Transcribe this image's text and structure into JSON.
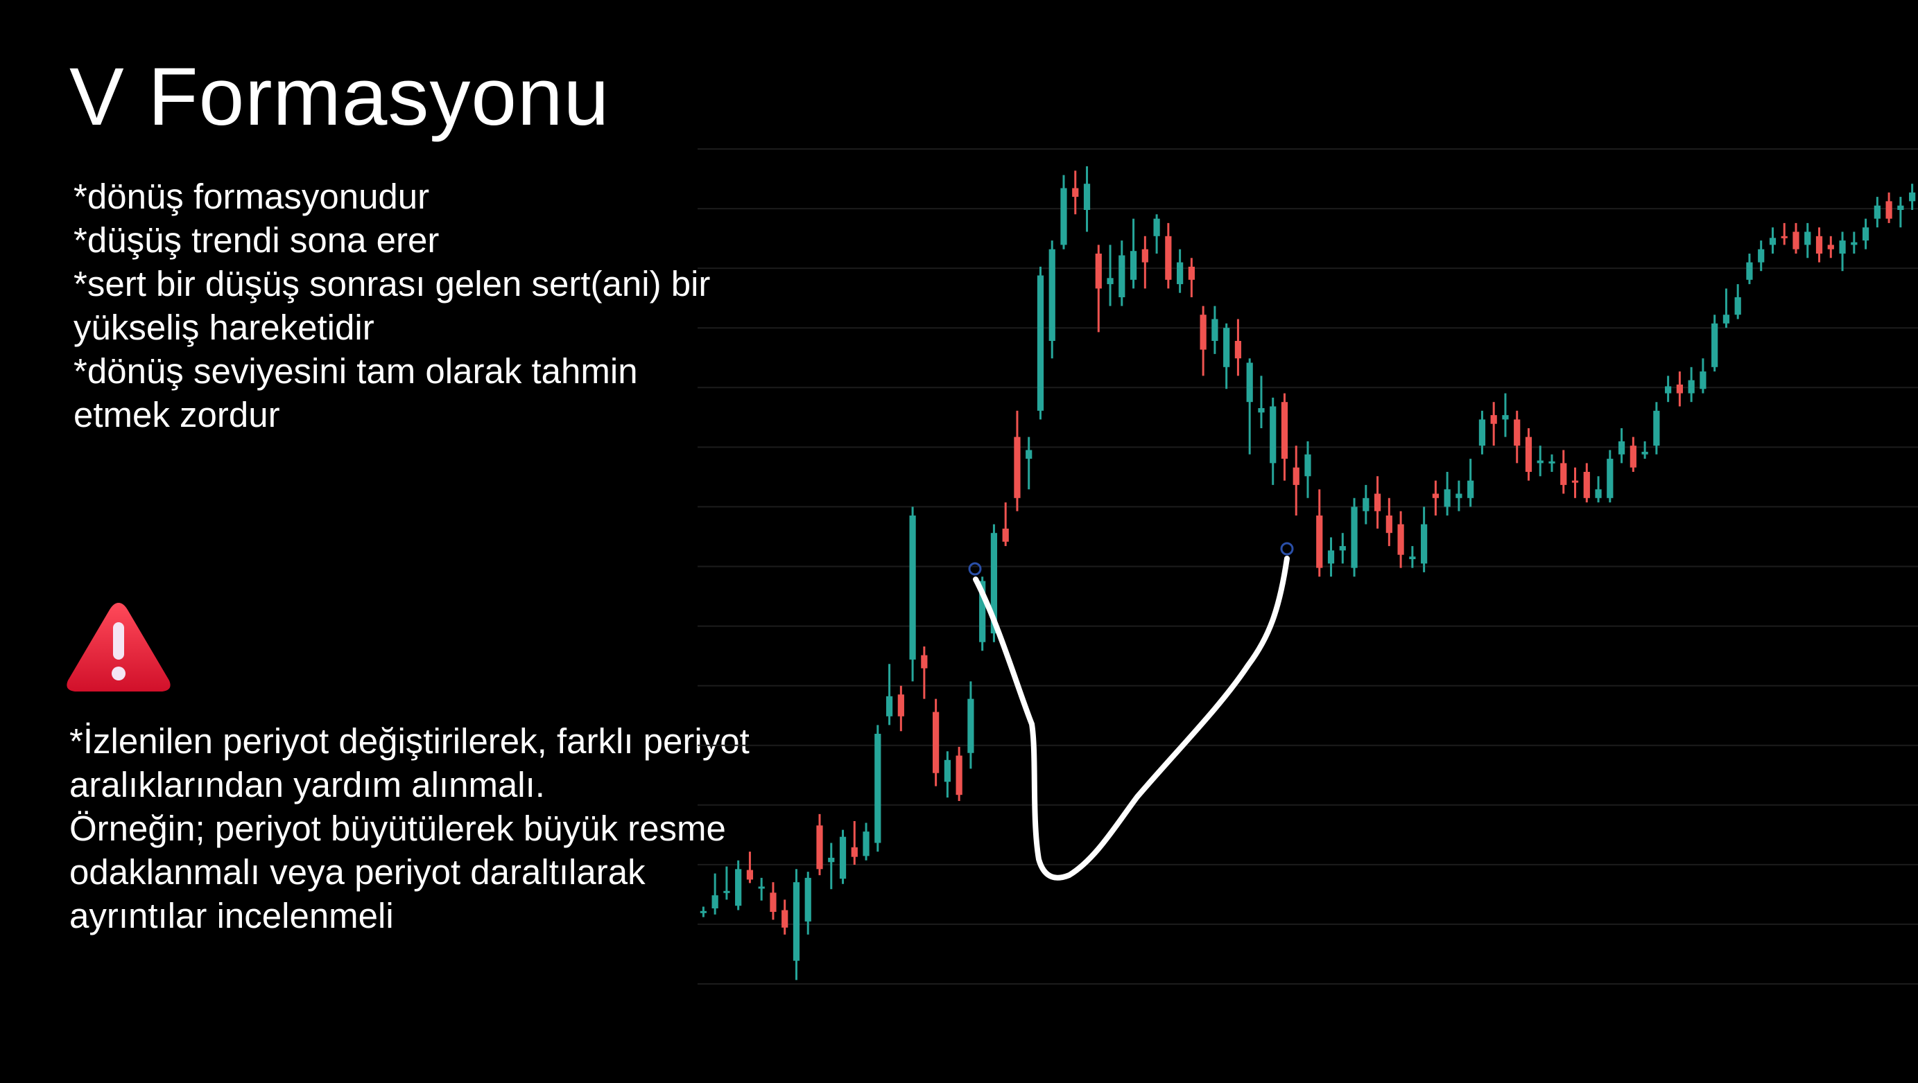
{
  "title": "V Formasyonu",
  "bullets": [
    "*dönüş formasyonudur",
    "*düşüş trendi sona erer",
    "*sert bir düşüş sonrası gelen sert(ani) bir",
    "yükseliş hareketidir",
    "*dönüş seviyesini tam olarak tahmin",
    "etmek zordur"
  ],
  "note": [
    "*İzlenilen periyot değiştirilerek, farklı periyot",
    "aralıklarından yardım alınmalı.",
    "Örneğin; periyot büyütülerek büyük resme",
    "odaklanmalı veya periyot daraltılarak",
    "ayrıntılar incelenmeli"
  ],
  "warning_icon": "warning-triangle-icon",
  "colors": {
    "up": "#26a69a",
    "down": "#ef5350",
    "background": "#000000",
    "text": "#ffffff",
    "warning": "#e8192c"
  },
  "chart_data": {
    "type": "candlestick",
    "grid": true,
    "ylim": [
      0,
      100
    ],
    "candles": [
      {
        "o": 14.5,
        "c": 14.7,
        "h": 15.2,
        "l": 14.0
      },
      {
        "o": 15.0,
        "c": 16.5,
        "h": 19.0,
        "l": 14.3
      },
      {
        "o": 16.8,
        "c": 17.0,
        "h": 19.8,
        "l": 16.0
      },
      {
        "o": 15.3,
        "c": 19.5,
        "h": 20.5,
        "l": 14.8
      },
      {
        "o": 19.4,
        "c": 18.3,
        "h": 21.5,
        "l": 17.9
      },
      {
        "o": 17.3,
        "c": 17.5,
        "h": 18.5,
        "l": 15.9
      },
      {
        "o": 16.8,
        "c": 14.6,
        "h": 18.0,
        "l": 13.7
      },
      {
        "o": 14.8,
        "c": 12.8,
        "h": 16.0,
        "l": 12.0
      },
      {
        "o": 9.0,
        "c": 18.0,
        "h": 19.5,
        "l": 6.8
      },
      {
        "o": 13.5,
        "c": 18.5,
        "h": 19.2,
        "l": 12.0
      },
      {
        "o": 24.5,
        "c": 19.5,
        "h": 25.8,
        "l": 18.8
      },
      {
        "o": 20.3,
        "c": 20.8,
        "h": 22.5,
        "l": 17.2
      },
      {
        "o": 18.4,
        "c": 23.2,
        "h": 24.0,
        "l": 17.8
      },
      {
        "o": 22.0,
        "c": 20.9,
        "h": 25.0,
        "l": 20.0
      },
      {
        "o": 21.0,
        "c": 23.8,
        "h": 24.8,
        "l": 20.5
      },
      {
        "o": 22.5,
        "c": 35.0,
        "h": 36.0,
        "l": 21.5
      },
      {
        "o": 37.0,
        "c": 39.3,
        "h": 43.0,
        "l": 36.0
      },
      {
        "o": 39.5,
        "c": 37.0,
        "h": 40.5,
        "l": 35.3
      },
      {
        "o": 43.5,
        "c": 60.0,
        "h": 61.0,
        "l": 41.0
      },
      {
        "o": 44.0,
        "c": 42.5,
        "h": 45.0,
        "l": 39.0
      },
      {
        "o": 37.5,
        "c": 30.5,
        "h": 39.0,
        "l": 29.0
      },
      {
        "o": 29.5,
        "c": 32.0,
        "h": 33.0,
        "l": 27.7
      },
      {
        "o": 32.5,
        "c": 28.0,
        "h": 33.5,
        "l": 27.3
      },
      {
        "o": 32.8,
        "c": 39.0,
        "h": 41.0,
        "l": 31.0
      },
      {
        "o": 45.5,
        "c": 52.5,
        "h": 53.0,
        "l": 44.5
      },
      {
        "o": 46.5,
        "c": 58.0,
        "h": 59.0,
        "l": 45.5
      },
      {
        "o": 58.5,
        "c": 57.0,
        "h": 61.5,
        "l": 56.5
      },
      {
        "o": 69.0,
        "c": 62.0,
        "h": 72.0,
        "l": 60.5
      },
      {
        "o": 66.5,
        "c": 67.5,
        "h": 69.0,
        "l": 63.0
      },
      {
        "o": 72.0,
        "c": 87.5,
        "h": 88.5,
        "l": 71.0
      },
      {
        "o": 80.0,
        "c": 90.5,
        "h": 91.5,
        "l": 78.0
      },
      {
        "o": 91.0,
        "c": 97.5,
        "h": 99.0,
        "l": 90.5
      },
      {
        "o": 97.5,
        "c": 96.5,
        "h": 99.5,
        "l": 94.5
      },
      {
        "o": 95.0,
        "c": 98.0,
        "h": 100,
        "l": 92.5
      },
      {
        "o": 90.0,
        "c": 86.0,
        "h": 91.0,
        "l": 81.0
      },
      {
        "o": 86.5,
        "c": 87.2,
        "h": 91.0,
        "l": 84.0
      },
      {
        "o": 85.0,
        "c": 89.8,
        "h": 91.5,
        "l": 84.0
      },
      {
        "o": 87.0,
        "c": 90.3,
        "h": 94.0,
        "l": 86.0
      },
      {
        "o": 90.5,
        "c": 89.0,
        "h": 92.0,
        "l": 86.0
      },
      {
        "o": 92.0,
        "c": 94.0,
        "h": 94.5,
        "l": 90.0
      },
      {
        "o": 92.0,
        "c": 87.0,
        "h": 93.5,
        "l": 86.0
      },
      {
        "o": 86.5,
        "c": 89.0,
        "h": 90.5,
        "l": 85.5
      },
      {
        "o": 88.5,
        "c": 87.0,
        "h": 89.5,
        "l": 85.0
      },
      {
        "o": 83.0,
        "c": 79.0,
        "h": 84.0,
        "l": 76.0
      },
      {
        "o": 80.0,
        "c": 82.5,
        "h": 84.0,
        "l": 78.5
      },
      {
        "o": 77.0,
        "c": 81.5,
        "h": 82.0,
        "l": 74.5
      },
      {
        "o": 80.0,
        "c": 78.0,
        "h": 82.5,
        "l": 76.0
      },
      {
        "o": 73.0,
        "c": 77.5,
        "h": 78.0,
        "l": 67.0
      },
      {
        "o": 71.8,
        "c": 72.3,
        "h": 76.0,
        "l": 70.0
      },
      {
        "o": 66.0,
        "c": 72.5,
        "h": 73.5,
        "l": 63.5
      },
      {
        "o": 73.0,
        "c": 66.5,
        "h": 74.0,
        "l": 64.0
      },
      {
        "o": 65.5,
        "c": 63.5,
        "h": 68.0,
        "l": 60.0
      },
      {
        "o": 64.5,
        "c": 67.0,
        "h": 68.5,
        "l": 62.0
      },
      {
        "o": 60.0,
        "c": 54.0,
        "h": 63.0,
        "l": 53.0
      },
      {
        "o": 54.5,
        "c": 56.0,
        "h": 57.5,
        "l": 53.0
      },
      {
        "o": 56.0,
        "c": 56.5,
        "h": 58.0,
        "l": 54.5
      },
      {
        "o": 54.0,
        "c": 61.0,
        "h": 62.0,
        "l": 53.0
      },
      {
        "o": 60.5,
        "c": 62.0,
        "h": 63.5,
        "l": 59.0
      },
      {
        "o": 62.5,
        "c": 60.5,
        "h": 64.5,
        "l": 58.5
      },
      {
        "o": 60.0,
        "c": 58.0,
        "h": 62.0,
        "l": 56.5
      },
      {
        "o": 59.0,
        "c": 55.5,
        "h": 60.5,
        "l": 54.0
      },
      {
        "o": 55.0,
        "c": 55.3,
        "h": 56.5,
        "l": 54.0
      },
      {
        "o": 54.5,
        "c": 59.0,
        "h": 61.0,
        "l": 53.5
      },
      {
        "o": 62.5,
        "c": 62.0,
        "h": 64.0,
        "l": 60.0
      },
      {
        "o": 61.0,
        "c": 63.0,
        "h": 65.0,
        "l": 60.0
      },
      {
        "o": 62.0,
        "c": 62.5,
        "h": 64.0,
        "l": 60.5
      },
      {
        "o": 62.0,
        "c": 64.0,
        "h": 66.5,
        "l": 61.0
      },
      {
        "o": 68.0,
        "c": 71.0,
        "h": 72.0,
        "l": 67.0
      },
      {
        "o": 71.5,
        "c": 70.5,
        "h": 73.0,
        "l": 68.0
      },
      {
        "o": 71.0,
        "c": 71.5,
        "h": 74.0,
        "l": 69.0
      },
      {
        "o": 71.0,
        "c": 68.0,
        "h": 72.0,
        "l": 66.0
      },
      {
        "o": 69.0,
        "c": 65.0,
        "h": 70.0,
        "l": 64.0
      },
      {
        "o": 66.0,
        "c": 66.3,
        "h": 68.0,
        "l": 64.5
      },
      {
        "o": 66.0,
        "c": 66.2,
        "h": 67.0,
        "l": 65.0
      },
      {
        "o": 66.0,
        "c": 63.5,
        "h": 67.5,
        "l": 62.5
      },
      {
        "o": 64.0,
        "c": 63.8,
        "h": 65.5,
        "l": 62.0
      },
      {
        "o": 65.0,
        "c": 62.0,
        "h": 66.0,
        "l": 61.5
      },
      {
        "o": 62.0,
        "c": 63.0,
        "h": 64.5,
        "l": 61.5
      },
      {
        "o": 62.0,
        "c": 66.5,
        "h": 67.5,
        "l": 61.5
      },
      {
        "o": 67.0,
        "c": 68.5,
        "h": 70.0,
        "l": 66.0
      },
      {
        "o": 68.0,
        "c": 65.5,
        "h": 69.0,
        "l": 65.0
      },
      {
        "o": 67.0,
        "c": 67.3,
        "h": 68.5,
        "l": 66.5
      },
      {
        "o": 68.0,
        "c": 72.0,
        "h": 73.0,
        "l": 67.0
      },
      {
        "o": 74.0,
        "c": 74.8,
        "h": 76.0,
        "l": 73.0
      },
      {
        "o": 75.0,
        "c": 74.0,
        "h": 76.5,
        "l": 72.5
      },
      {
        "o": 74.0,
        "c": 75.5,
        "h": 77.0,
        "l": 73.0
      },
      {
        "o": 74.5,
        "c": 76.5,
        "h": 78.0,
        "l": 74.0
      },
      {
        "o": 77.0,
        "c": 82.0,
        "h": 83.0,
        "l": 76.5
      },
      {
        "o": 82.0,
        "c": 83.0,
        "h": 86.0,
        "l": 81.5
      },
      {
        "o": 83.0,
        "c": 85.0,
        "h": 86.5,
        "l": 82.5
      },
      {
        "o": 87.0,
        "c": 89.0,
        "h": 90.0,
        "l": 86.5
      },
      {
        "o": 89.0,
        "c": 90.5,
        "h": 91.5,
        "l": 88.0
      },
      {
        "o": 91.0,
        "c": 91.8,
        "h": 93.0,
        "l": 90.0
      },
      {
        "o": 92.0,
        "c": 91.8,
        "h": 93.5,
        "l": 91.0
      },
      {
        "o": 92.5,
        "c": 90.5,
        "h": 93.5,
        "l": 90.0
      },
      {
        "o": 91.0,
        "c": 92.5,
        "h": 93.5,
        "l": 89.5
      },
      {
        "o": 92.0,
        "c": 90.0,
        "h": 93.0,
        "l": 89.0
      },
      {
        "o": 91.0,
        "c": 90.5,
        "h": 92.0,
        "l": 89.5
      },
      {
        "o": 90.0,
        "c": 91.5,
        "h": 92.5,
        "l": 88.0
      },
      {
        "o": 91.0,
        "c": 91.3,
        "h": 92.5,
        "l": 90.0
      },
      {
        "o": 91.5,
        "c": 93.0,
        "h": 94.0,
        "l": 90.5
      },
      {
        "o": 94.0,
        "c": 95.5,
        "h": 96.5,
        "l": 93.0
      },
      {
        "o": 96.0,
        "c": 94.0,
        "h": 97.0,
        "l": 93.5
      },
      {
        "o": 95.0,
        "c": 95.5,
        "h": 96.5,
        "l": 93.0
      },
      {
        "o": 96.0,
        "c": 97.0,
        "h": 98.0,
        "l": 95.0
      }
    ],
    "annotations": [
      {
        "type": "freehand-v",
        "points": [
          [
            0.293,
            0.578
          ],
          [
            0.36,
            0.43
          ],
          [
            0.43,
            0.46
          ],
          [
            0.63,
            0.596
          ]
        ]
      }
    ]
  }
}
